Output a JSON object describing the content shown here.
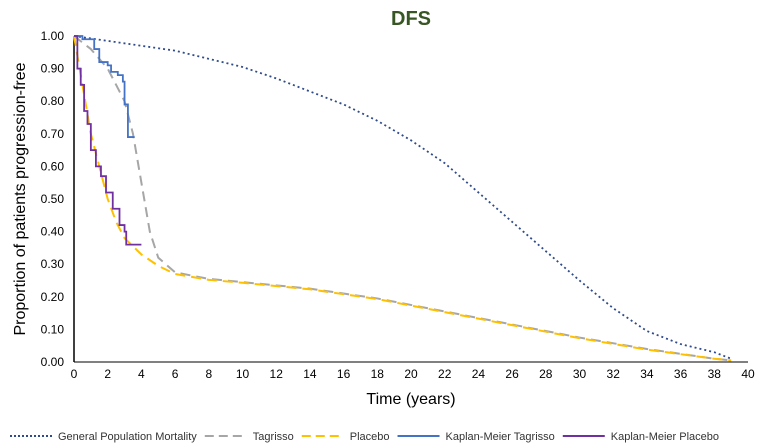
{
  "chart_data": {
    "type": "line",
    "title": "DFS",
    "xlabel": "Time (years)",
    "ylabel": "Proportion of patients progression-free",
    "xlim": [
      0,
      40
    ],
    "ylim": [
      0,
      1
    ],
    "xticks": [
      0,
      2,
      4,
      6,
      8,
      10,
      12,
      14,
      16,
      18,
      20,
      22,
      24,
      26,
      28,
      30,
      32,
      34,
      36,
      38,
      40
    ],
    "yticks": [
      "0.00",
      "0.10",
      "0.20",
      "0.30",
      "0.40",
      "0.50",
      "0.60",
      "0.70",
      "0.80",
      "0.90",
      "1.00"
    ],
    "grid": false,
    "legend_position": "bottom",
    "series": [
      {
        "name": "General Population Mortality",
        "color": "#2F4B8C",
        "style": "dotted",
        "step": false,
        "points": [
          [
            0,
            1.0
          ],
          [
            2,
            0.985
          ],
          [
            4,
            0.97
          ],
          [
            6,
            0.955
          ],
          [
            8,
            0.93
          ],
          [
            10,
            0.905
          ],
          [
            12,
            0.87
          ],
          [
            14,
            0.83
          ],
          [
            16,
            0.79
          ],
          [
            18,
            0.74
          ],
          [
            20,
            0.68
          ],
          [
            22,
            0.61
          ],
          [
            24,
            0.52
          ],
          [
            26,
            0.43
          ],
          [
            28,
            0.34
          ],
          [
            30,
            0.25
          ],
          [
            32,
            0.165
          ],
          [
            34,
            0.095
          ],
          [
            36,
            0.055
          ],
          [
            38,
            0.03
          ],
          [
            39,
            0.01
          ]
        ]
      },
      {
        "name": "Tagrisso",
        "color": "#A6A6A6",
        "style": "dashed",
        "step": false,
        "points": [
          [
            0,
            1.0
          ],
          [
            1,
            0.96
          ],
          [
            2,
            0.9
          ],
          [
            3,
            0.8
          ],
          [
            3.5,
            0.7
          ],
          [
            4,
            0.55
          ],
          [
            4.5,
            0.4
          ],
          [
            5,
            0.32
          ],
          [
            6,
            0.275
          ],
          [
            8,
            0.255
          ],
          [
            10,
            0.245
          ],
          [
            14,
            0.225
          ],
          [
            18,
            0.195
          ],
          [
            22,
            0.155
          ],
          [
            26,
            0.115
          ],
          [
            30,
            0.075
          ],
          [
            34,
            0.04
          ],
          [
            38,
            0.01
          ],
          [
            39,
            0.005
          ]
        ]
      },
      {
        "name": "Placebo",
        "color": "#FFC000",
        "style": "dashed",
        "step": false,
        "points": [
          [
            0,
            1.0
          ],
          [
            0.5,
            0.85
          ],
          [
            1,
            0.7
          ],
          [
            1.5,
            0.6
          ],
          [
            2,
            0.5
          ],
          [
            2.5,
            0.43
          ],
          [
            3,
            0.38
          ],
          [
            4,
            0.33
          ],
          [
            5,
            0.295
          ],
          [
            6,
            0.27
          ],
          [
            8,
            0.252
          ],
          [
            10,
            0.243
          ],
          [
            14,
            0.223
          ],
          [
            18,
            0.193
          ],
          [
            22,
            0.153
          ],
          [
            26,
            0.113
          ],
          [
            30,
            0.073
          ],
          [
            34,
            0.038
          ],
          [
            38,
            0.01
          ],
          [
            39,
            0.005
          ]
        ]
      },
      {
        "name": "Kaplan-Meier Tagrisso",
        "color": "#4472C4",
        "style": "solid",
        "step": true,
        "points": [
          [
            0,
            1.0
          ],
          [
            0.5,
            0.99
          ],
          [
            1.2,
            0.96
          ],
          [
            1.5,
            0.92
          ],
          [
            2.0,
            0.91
          ],
          [
            2.2,
            0.89
          ],
          [
            2.6,
            0.88
          ],
          [
            2.9,
            0.86
          ],
          [
            3.0,
            0.79
          ],
          [
            3.2,
            0.69
          ],
          [
            3.6,
            0.69
          ]
        ]
      },
      {
        "name": "Kaplan-Meier Placebo",
        "color": "#7030A0",
        "style": "solid",
        "step": true,
        "points": [
          [
            0,
            1.0
          ],
          [
            0.2,
            0.9
          ],
          [
            0.4,
            0.85
          ],
          [
            0.6,
            0.77
          ],
          [
            0.8,
            0.73
          ],
          [
            1.0,
            0.65
          ],
          [
            1.3,
            0.6
          ],
          [
            1.6,
            0.57
          ],
          [
            1.9,
            0.52
          ],
          [
            2.3,
            0.47
          ],
          [
            2.7,
            0.42
          ],
          [
            3.0,
            0.4
          ],
          [
            3.1,
            0.36
          ],
          [
            4.0,
            0.36
          ]
        ]
      }
    ]
  }
}
